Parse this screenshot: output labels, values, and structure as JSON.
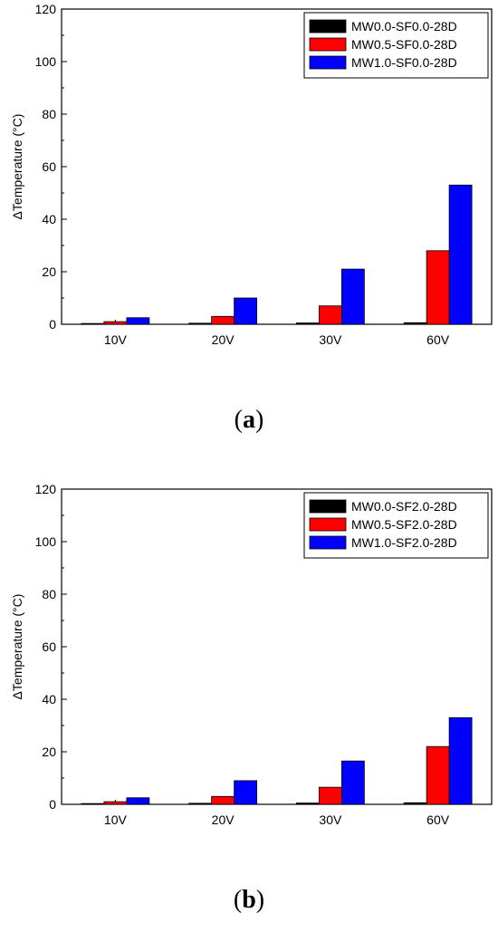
{
  "chart_data": [
    {
      "type": "bar",
      "ylabel": "ΔTemperature (°C)",
      "xlabel": "",
      "ylim": [
        0,
        120
      ],
      "yticks": [
        "0",
        "20",
        "40",
        "60",
        "80",
        "100",
        "120"
      ],
      "categories": [
        "10V",
        "20V",
        "30V",
        "60V"
      ],
      "legend_position": "top-right",
      "series": [
        {
          "name": "MW0.0-SF0.0-28D",
          "color": "#000000",
          "values": [
            0.3,
            0.4,
            0.5,
            0.6
          ]
        },
        {
          "name": "MW0.5-SF0.0-28D",
          "color": "#ff0000",
          "values": [
            1.0,
            3.0,
            7.0,
            28.0
          ]
        },
        {
          "name": "MW1.0-SF0.0-28D",
          "color": "#0000ff",
          "values": [
            2.5,
            10.0,
            21.0,
            53.0
          ]
        }
      ],
      "caption": "a"
    },
    {
      "type": "bar",
      "ylabel": "ΔTemperature (°C)",
      "xlabel": "",
      "ylim": [
        0,
        120
      ],
      "yticks": [
        "0",
        "20",
        "40",
        "60",
        "80",
        "100",
        "120"
      ],
      "categories": [
        "10V",
        "20V",
        "30V",
        "60V"
      ],
      "legend_position": "top-right",
      "series": [
        {
          "name": "MW0.0-SF2.0-28D",
          "color": "#000000",
          "values": [
            0.3,
            0.4,
            0.5,
            0.6
          ]
        },
        {
          "name": "MW0.5-SF2.0-28D",
          "color": "#ff0000",
          "values": [
            1.0,
            3.0,
            6.5,
            22.0
          ]
        },
        {
          "name": "MW1.0-SF2.0-28D",
          "color": "#0000ff",
          "values": [
            2.5,
            9.0,
            16.5,
            33.0
          ]
        }
      ],
      "caption": "b"
    }
  ]
}
